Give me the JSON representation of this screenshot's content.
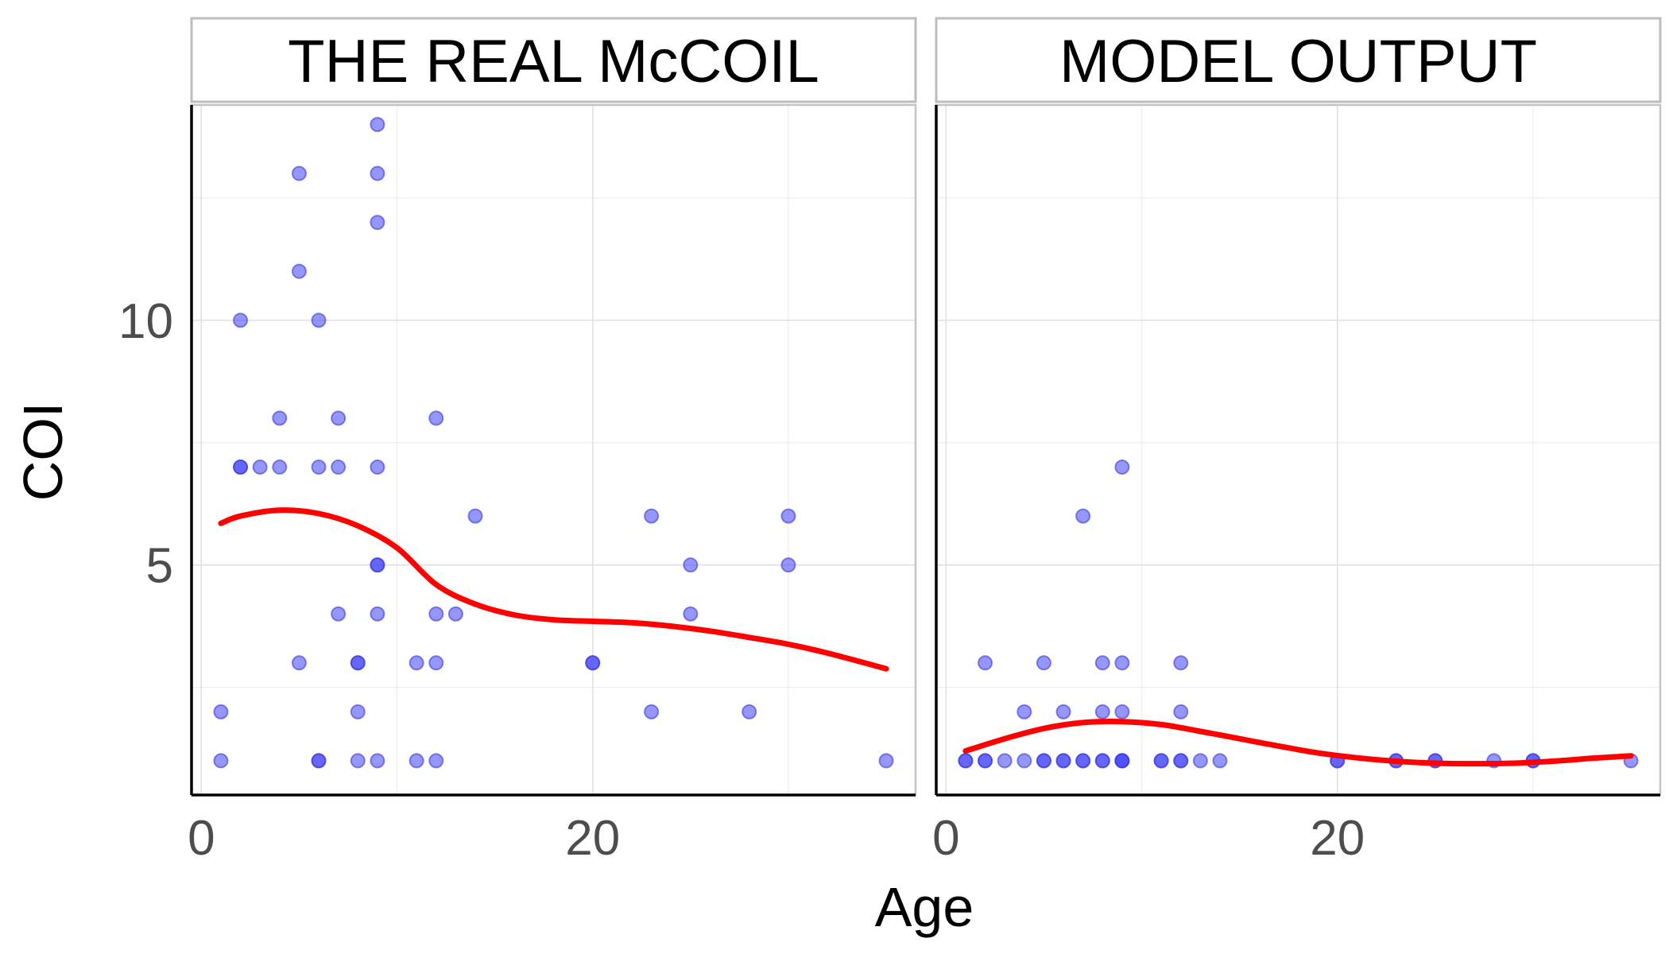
{
  "chart_data": {
    "type": "scatter",
    "xlabel": "Age",
    "ylabel": "COI",
    "xlim": [
      -0.5,
      36.5
    ],
    "ylim": [
      0.3,
      14.4
    ],
    "x_ticks": [
      0,
      20
    ],
    "y_ticks": [
      5,
      10
    ],
    "grid": true,
    "legend": "none",
    "colors": {
      "points": "#4040ff",
      "smooth": "#ff0000",
      "axis": "#000000",
      "grid": "#e0e0e0",
      "strip_border": "#bdbdbd"
    },
    "panels": [
      {
        "title": "THE REAL McCOIL",
        "points": [
          [
            1,
            1
          ],
          [
            1,
            2
          ],
          [
            2,
            7
          ],
          [
            2,
            7
          ],
          [
            2,
            10
          ],
          [
            3,
            7
          ],
          [
            4,
            8
          ],
          [
            4,
            7
          ],
          [
            5,
            13
          ],
          [
            5,
            11
          ],
          [
            5,
            3
          ],
          [
            6,
            10
          ],
          [
            6,
            7
          ],
          [
            6,
            1
          ],
          [
            6,
            1
          ],
          [
            7,
            8
          ],
          [
            7,
            7
          ],
          [
            7,
            4
          ],
          [
            8,
            3
          ],
          [
            8,
            3
          ],
          [
            8,
            2
          ],
          [
            8,
            1
          ],
          [
            9,
            14
          ],
          [
            9,
            13
          ],
          [
            9,
            12
          ],
          [
            9,
            7
          ],
          [
            9,
            5
          ],
          [
            9,
            5
          ],
          [
            9,
            4
          ],
          [
            9,
            1
          ],
          [
            11,
            3
          ],
          [
            11,
            1
          ],
          [
            12,
            8
          ],
          [
            12,
            4
          ],
          [
            12,
            3
          ],
          [
            12,
            1
          ],
          [
            13,
            4
          ],
          [
            14,
            6
          ],
          [
            20,
            3
          ],
          [
            20,
            3
          ],
          [
            23,
            6
          ],
          [
            23,
            2
          ],
          [
            25,
            5
          ],
          [
            25,
            4
          ],
          [
            28,
            2
          ],
          [
            30,
            6
          ],
          [
            30,
            5
          ],
          [
            35,
            1
          ]
        ],
        "smooth": [
          [
            1,
            5.85
          ],
          [
            2,
            6.0
          ],
          [
            4,
            6.12
          ],
          [
            6,
            6.05
          ],
          [
            8,
            5.8
          ],
          [
            10,
            5.35
          ],
          [
            12,
            4.6
          ],
          [
            14,
            4.2
          ],
          [
            16,
            3.98
          ],
          [
            18,
            3.88
          ],
          [
            20,
            3.85
          ],
          [
            22,
            3.82
          ],
          [
            24,
            3.75
          ],
          [
            26,
            3.65
          ],
          [
            28,
            3.52
          ],
          [
            30,
            3.38
          ],
          [
            32,
            3.2
          ],
          [
            35,
            2.88
          ]
        ]
      },
      {
        "title": "MODEL OUTPUT",
        "points": [
          [
            1,
            1
          ],
          [
            1,
            1
          ],
          [
            2,
            1
          ],
          [
            2,
            1
          ],
          [
            2,
            3
          ],
          [
            3,
            1
          ],
          [
            4,
            1
          ],
          [
            4,
            2
          ],
          [
            5,
            1
          ],
          [
            5,
            1
          ],
          [
            5,
            3
          ],
          [
            6,
            1
          ],
          [
            6,
            1
          ],
          [
            6,
            2
          ],
          [
            7,
            1
          ],
          [
            7,
            1
          ],
          [
            7,
            6
          ],
          [
            8,
            1
          ],
          [
            8,
            1
          ],
          [
            8,
            2
          ],
          [
            8,
            3
          ],
          [
            9,
            1
          ],
          [
            9,
            1
          ],
          [
            9,
            1
          ],
          [
            9,
            2
          ],
          [
            9,
            3
          ],
          [
            9,
            7
          ],
          [
            11,
            1
          ],
          [
            11,
            1
          ],
          [
            12,
            1
          ],
          [
            12,
            1
          ],
          [
            12,
            2
          ],
          [
            12,
            3
          ],
          [
            13,
            1
          ],
          [
            14,
            1
          ],
          [
            20,
            1
          ],
          [
            20,
            1
          ],
          [
            23,
            1
          ],
          [
            23,
            1
          ],
          [
            25,
            1
          ],
          [
            25,
            1
          ],
          [
            28,
            1
          ],
          [
            30,
            1
          ],
          [
            30,
            1
          ],
          [
            35,
            1
          ]
        ],
        "smooth": [
          [
            1,
            1.2
          ],
          [
            3,
            1.45
          ],
          [
            5,
            1.66
          ],
          [
            7,
            1.78
          ],
          [
            9,
            1.8
          ],
          [
            11,
            1.74
          ],
          [
            13,
            1.6
          ],
          [
            15,
            1.45
          ],
          [
            17,
            1.3
          ],
          [
            19,
            1.16
          ],
          [
            21,
            1.06
          ],
          [
            23,
            0.99
          ],
          [
            25,
            0.95
          ],
          [
            27,
            0.94
          ],
          [
            29,
            0.95
          ],
          [
            31,
            0.99
          ],
          [
            33,
            1.05
          ],
          [
            35,
            1.1
          ]
        ]
      }
    ]
  }
}
